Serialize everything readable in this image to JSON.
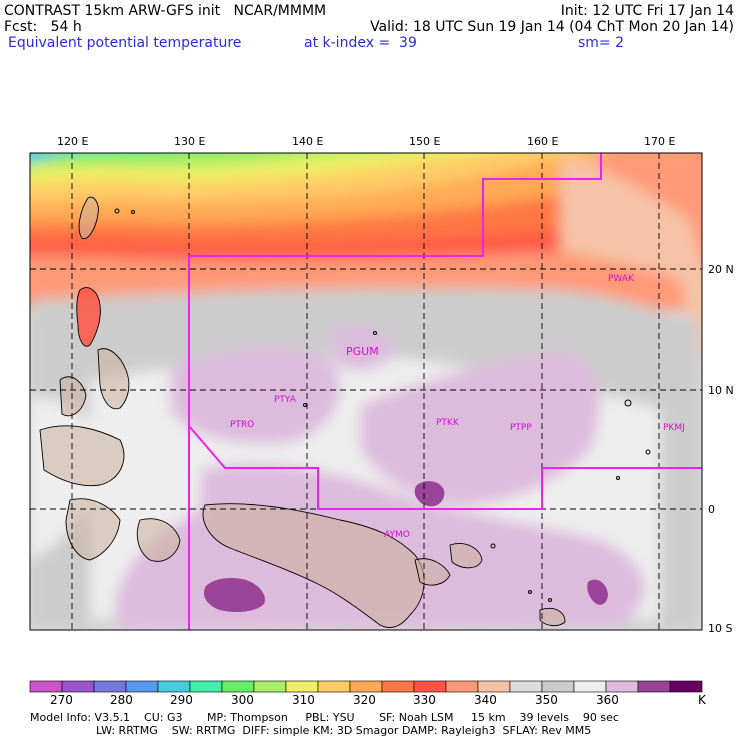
{
  "header": {
    "line1_left": "CONTRAST 15km ARW-GFS init   NCAR/MMMM",
    "line1_right": "Init: 12 UTC Fri 17 Jan 14",
    "line2_left": "Fcst:   54 h",
    "line2_right": "Valid: 18 UTC Sun 19 Jan 14 (04 ChT Mon 20 Jan 14)",
    "field": "Equivalent potential temperature",
    "level": "at k-index =  39",
    "smooth": "sm= 2"
  },
  "lon_labels": [
    "120 E",
    "130 E",
    "140 E",
    "150 E",
    "160 E",
    "170 E"
  ],
  "lat_labels": [
    "20 N",
    "10 N",
    "0",
    "10 S"
  ],
  "stations": [
    "PWAK",
    "PGUM",
    "PTYA",
    "PTRO",
    "PTKK",
    "PTPP",
    "PKMJ",
    "AYMO"
  ],
  "colorbar": {
    "unit": "K",
    "labels": [
      "270",
      "280",
      "290",
      "300",
      "310",
      "320",
      "330",
      "340",
      "350",
      "360"
    ],
    "colors": [
      "#cc55cc",
      "#9955cc",
      "#7777dd",
      "#5599ee",
      "#44ccdd",
      "#44eeaa",
      "#66ee66",
      "#aaee66",
      "#eeee66",
      "#ffcc66",
      "#ffaa55",
      "#ff7744",
      "#ff5544",
      "#ff9977",
      "#f5c2a6",
      "#dddddd",
      "#cccccc",
      "#eeeeee",
      "#ddbbdd",
      "#994499",
      "#660066"
    ]
  },
  "model_info": {
    "line1": "Model Info: V3.5.1    CU: G3       MP: Thompson     PBL: YSU       SF: Noah LSM     15 km    39 levels    90 sec",
    "line2": "LW: RRTMG    SW: RRTMG  DIFF: simple KM: 3D Smagor DAMP: Rayleigh3  SFLAY: Rev MM5"
  }
}
